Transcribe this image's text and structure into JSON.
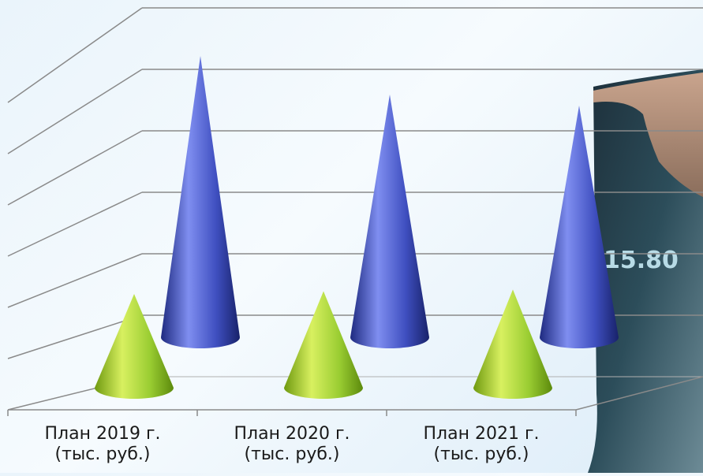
{
  "chart_data": {
    "type": "bar",
    "shape": "cone",
    "categories": [
      "План 2019 г. (тыс. руб.)",
      "План  2020 г. (тыс. руб.)",
      "План  2021 г. (тыс. руб.)"
    ],
    "category_lines": [
      [
        "План 2019 г.",
        "(тыс. руб.)"
      ],
      [
        "План  2020 г.",
        "(тыс. руб.)"
      ],
      [
        "План  2021 г.",
        "(тыс. руб.)"
      ]
    ],
    "series": [
      {
        "values": [
          1.7,
          1.75,
          1.78
        ],
        "color": "#9acd32"
      },
      {
        "values": [
          5.1,
          4.4,
          4.2
        ],
        "color": "#3f4fc0"
      }
    ],
    "ylim": [
      0,
      6
    ],
    "grid": true,
    "legend": false,
    "background_image": {
      "readout": "15.80"
    }
  }
}
